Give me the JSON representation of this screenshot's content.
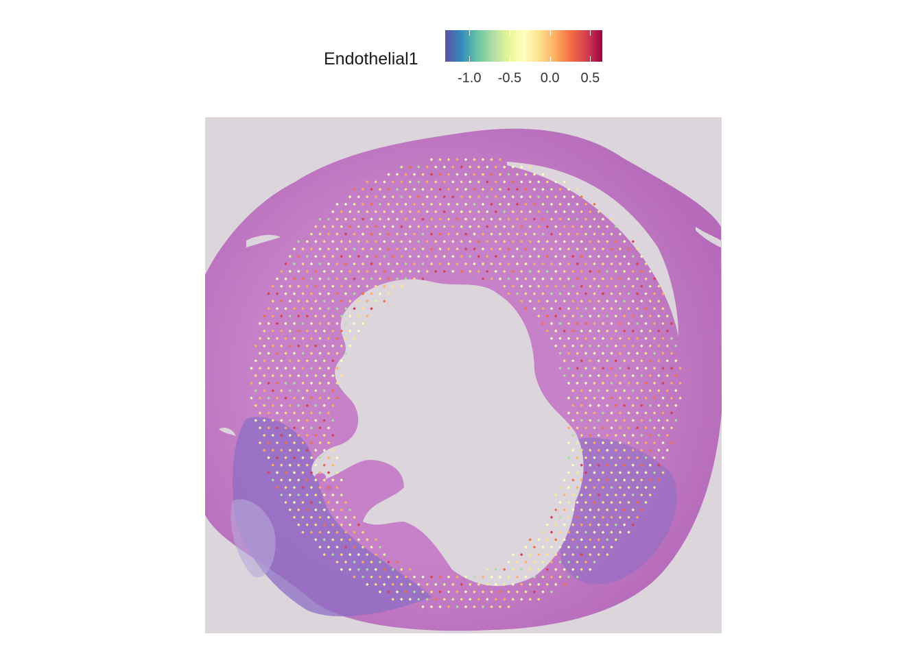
{
  "legend": {
    "title": "Endothelial1",
    "ticks": [
      "-1.0",
      "-0.5",
      "0.0",
      "0.5"
    ],
    "tick_values": [
      -1.0,
      -0.5,
      0.0,
      0.5
    ],
    "range": [
      -1.3,
      0.65
    ],
    "palette": [
      "#5E4FA2",
      "#3288BD",
      "#66C2A5",
      "#ABDDA4",
      "#E6F598",
      "#FFFFBF",
      "#FEE08B",
      "#FDAE61",
      "#F46D43",
      "#D53E4F",
      "#9E0142"
    ]
  },
  "image": {
    "description_icon": "tissue-section-image",
    "background_color": "#dcd6dc",
    "tissue_color": "#c478c4",
    "immune_color": "#8a6cc0"
  }
}
